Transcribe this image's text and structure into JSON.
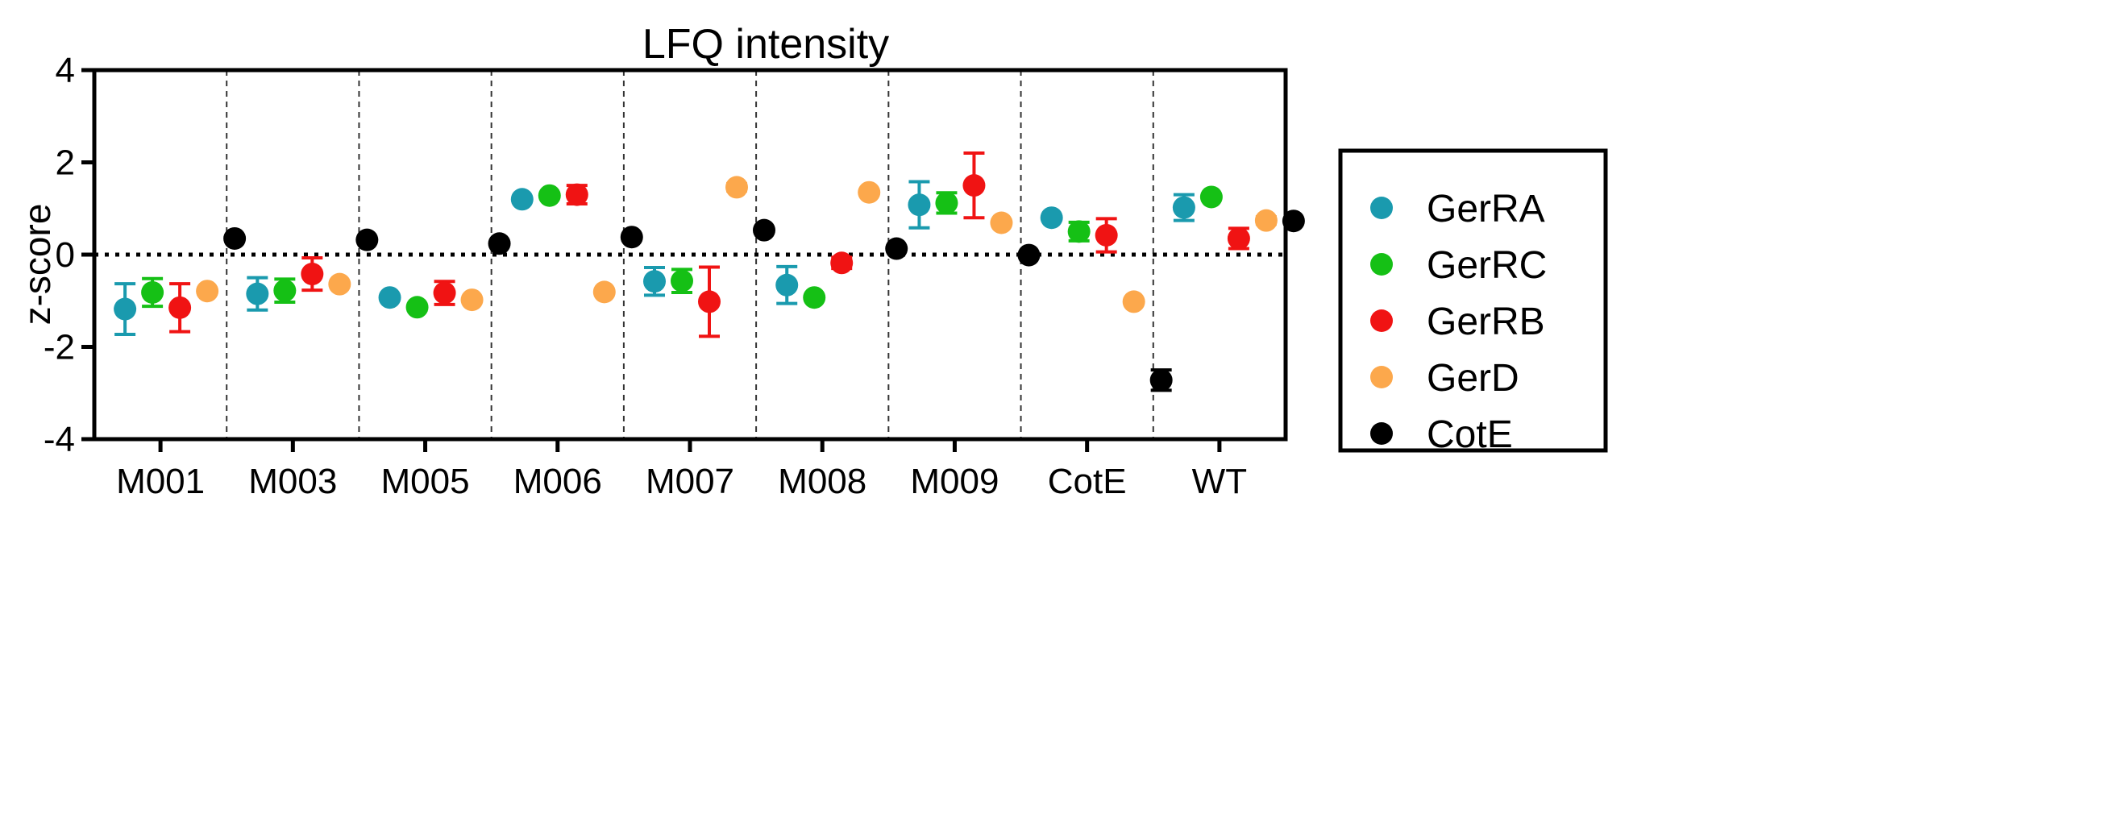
{
  "chart_data": {
    "type": "scatter",
    "title": "LFQ intensity",
    "xlabel": "",
    "ylabel": "z-score",
    "ylim": [
      -4,
      4
    ],
    "yticks": [
      4,
      2,
      0,
      -2,
      -4
    ],
    "ytick_labels": [
      "4",
      "2",
      "0",
      "-2",
      "-4"
    ],
    "categories": [
      "M001",
      "M003",
      "M005",
      "M006",
      "M007",
      "M008",
      "M009",
      "CotE",
      "WT"
    ],
    "reference_line": 0,
    "group_separators": true,
    "legend_position": "right",
    "series": [
      {
        "name": "GerRA",
        "color": "#1a9aae",
        "values": [
          -1.18,
          -0.85,
          -0.93,
          1.2,
          -0.58,
          -0.66,
          1.08,
          0.8,
          1.02
        ],
        "errors": [
          0.55,
          0.35,
          0.05,
          0.06,
          0.3,
          0.4,
          0.5,
          0.06,
          0.28
        ]
      },
      {
        "name": "GerRC",
        "color": "#15c015",
        "values": [
          -0.82,
          -0.78,
          -1.14,
          1.28,
          -0.57,
          -0.93,
          1.12,
          0.5,
          1.25
        ],
        "errors": [
          0.3,
          0.25,
          0.05,
          0.06,
          0.25,
          0.06,
          0.22,
          0.2,
          0.05
        ]
      },
      {
        "name": "GerRB",
        "color": "#f01313",
        "values": [
          -1.15,
          -0.42,
          -0.83,
          1.3,
          -1.02,
          -0.18,
          1.5,
          0.42,
          0.35
        ],
        "errors": [
          0.52,
          0.35,
          0.25,
          0.2,
          0.75,
          0.12,
          0.7,
          0.36,
          0.22
        ]
      },
      {
        "name": "GerD",
        "color": "#fca84c",
        "values": [
          -0.79,
          -0.64,
          -0.98,
          -0.81,
          1.46,
          1.35,
          0.69,
          -1.02,
          0.74
        ],
        "errors": [
          0.05,
          0.05,
          0.05,
          0.05,
          0.08,
          0.05,
          0.06,
          0.05,
          0.08
        ]
      },
      {
        "name": "CotE",
        "color": "#000000",
        "values": [
          0.35,
          0.32,
          0.24,
          0.38,
          0.53,
          0.13,
          -0.01,
          -2.72,
          0.73
        ],
        "errors": [
          0.05,
          0.05,
          0.05,
          0.05,
          0.05,
          0.05,
          0.03,
          0.22,
          0.06
        ]
      }
    ]
  }
}
